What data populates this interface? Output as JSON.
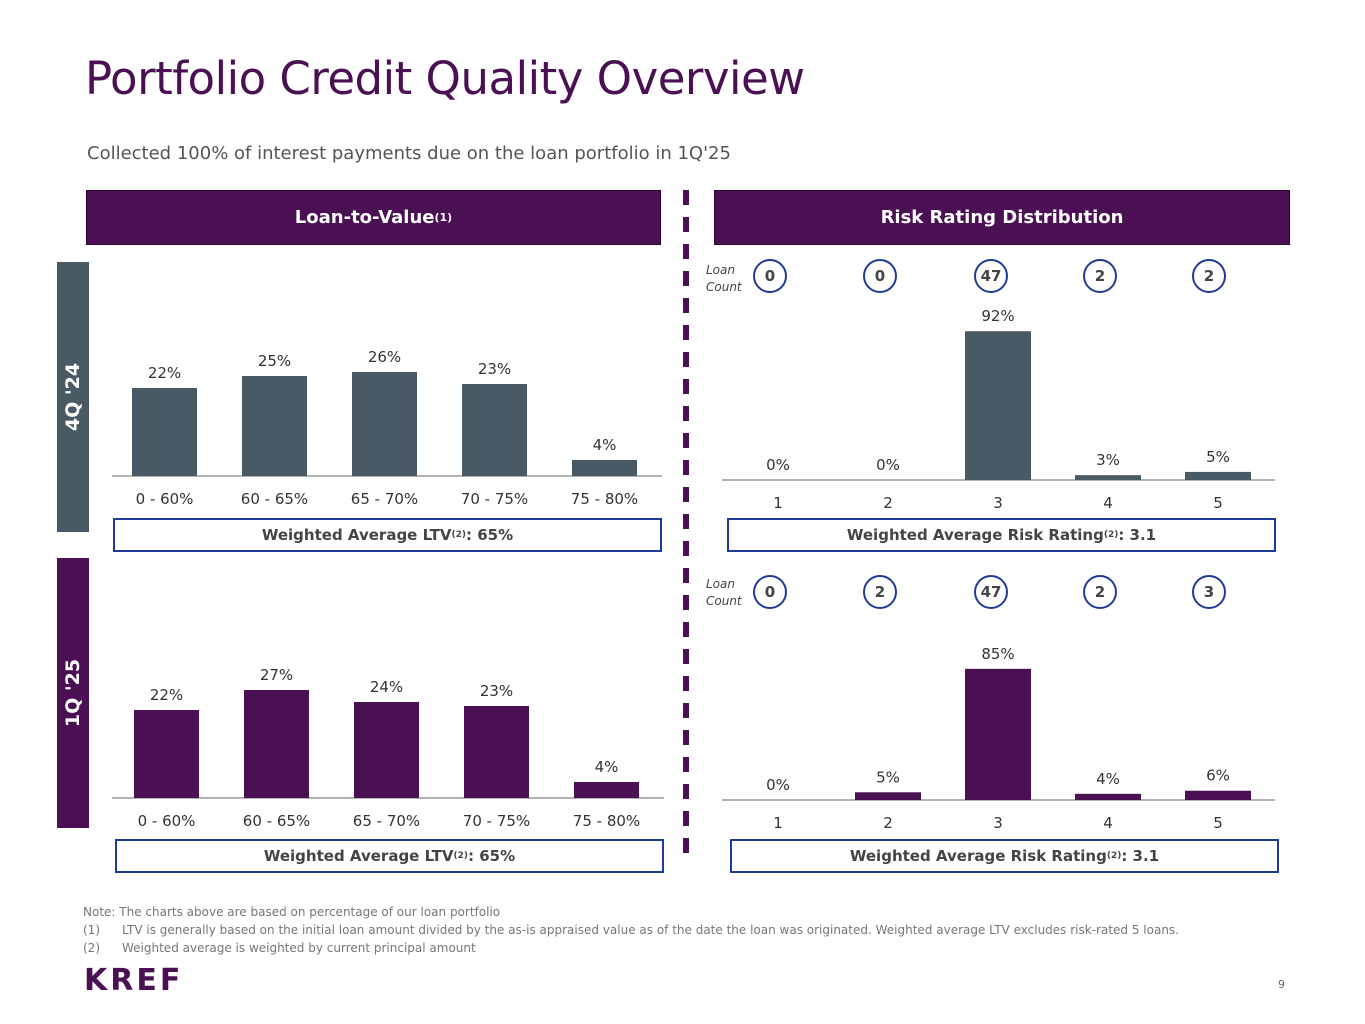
{
  "page": {
    "title": "Portfolio Credit Quality Overview",
    "subtitle": "Collected 100% of interest payments due on the loan portfolio in 1Q'25",
    "page_number": "9",
    "logo_text": "KREF"
  },
  "headers": {
    "ltv_text": "Loan-to-Value",
    "ltv_sup": "(1)",
    "risk": "Risk Rating Distribution"
  },
  "periods": {
    "q4_24": "4Q '24",
    "q1_25": "1Q '25"
  },
  "colors": {
    "purple": "#4a1053",
    "gray": "#4a5a64",
    "blue": "#1f3b99"
  },
  "loan_count_label": "Loan Count",
  "summary": {
    "ltv_prefix": "Weighted Average LTV",
    "ltv_sup": "(2)",
    "ltv_value": ": 65%",
    "risk_prefix": "Weighted Average Risk Rating",
    "risk_sup": "(2)",
    "risk_value": ": 3.1"
  },
  "loan_counts": {
    "q4_24": [
      "0",
      "0",
      "47",
      "2",
      "2"
    ],
    "q1_25": [
      "0",
      "2",
      "47",
      "2",
      "3"
    ]
  },
  "notes": {
    "intro": "Note: The charts above are based on percentage of our loan portfolio",
    "items": [
      {
        "num": "(1)",
        "text": "LTV is generally based on the initial loan amount divided by the as-is appraised value as of the date the loan was originated. Weighted average LTV excludes risk-rated 5 loans."
      },
      {
        "num": "(2)",
        "text": "Weighted average is weighted by current principal amount"
      }
    ]
  },
  "chart_data": [
    {
      "id": "ltv-4q24",
      "type": "bar",
      "title": "Loan-to-Value 4Q '24",
      "categories": [
        "0 - 60%",
        "60 - 65%",
        "65 - 70%",
        "70 - 75%",
        "75 - 80%"
      ],
      "values": [
        22,
        25,
        26,
        23,
        4
      ],
      "labels": [
        "22%",
        "25%",
        "26%",
        "23%",
        "4%"
      ],
      "ylim": [
        0,
        35
      ]
    },
    {
      "id": "ltv-1q25",
      "type": "bar",
      "title": "Loan-to-Value 1Q '25",
      "categories": [
        "0 - 60%",
        "60 - 65%",
        "65 - 70%",
        "70 - 75%",
        "75 - 80%"
      ],
      "values": [
        22,
        27,
        24,
        23,
        4
      ],
      "labels": [
        "22%",
        "27%",
        "24%",
        "23%",
        "4%"
      ],
      "ylim": [
        0,
        35
      ]
    },
    {
      "id": "risk-4q24",
      "type": "bar",
      "title": "Risk Rating Distribution 4Q '24",
      "categories": [
        "1",
        "2",
        "3",
        "4",
        "5"
      ],
      "values": [
        0,
        0,
        92,
        3,
        5
      ],
      "labels": [
        "0%",
        "0%",
        "92%",
        "3%",
        "5%"
      ],
      "ylim": [
        0,
        115
      ]
    },
    {
      "id": "risk-1q25",
      "type": "bar",
      "title": "Risk Rating Distribution 1Q '25",
      "categories": [
        "1",
        "2",
        "3",
        "4",
        "5"
      ],
      "values": [
        0,
        5,
        85,
        4,
        6
      ],
      "labels": [
        "0%",
        "5%",
        "85%",
        "4%",
        "6%"
      ],
      "ylim": [
        0,
        105
      ]
    }
  ]
}
